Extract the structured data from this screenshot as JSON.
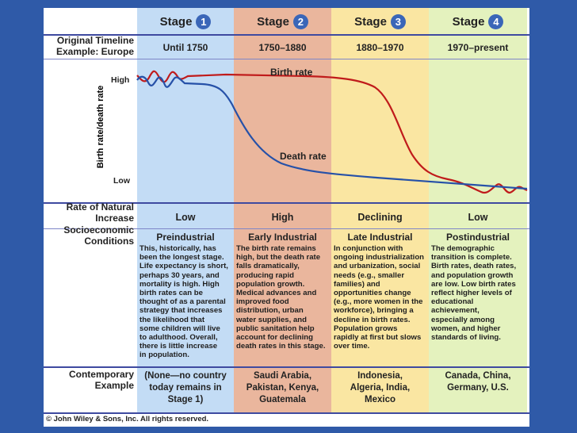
{
  "stages": [
    {
      "label": "Stage",
      "number": "1",
      "period": "Until 1750",
      "rate": "Low",
      "soc_title": "Preindustrial",
      "soc_lines": [
        "This, historically, has",
        "been the longest stage.",
        "Life expectancy is short,",
        "perhaps 30 years, and",
        "mortality is high. High",
        "birth rates can be",
        "thought of as a parental",
        "strategy that increases",
        "the likelihood that",
        "some children will live",
        "to adulthood. Overall,",
        "there is little increase",
        "in population."
      ],
      "contemporary": [
        "(None—no country",
        "today remains in",
        "Stage 1)"
      ]
    },
    {
      "label": "Stage",
      "number": "2",
      "period": "1750–1880",
      "rate": "High",
      "soc_title": "Early Industrial",
      "soc_lines": [
        "The birth rate remains",
        "high, but the death rate",
        "falls dramatically,",
        "producing rapid",
        "population growth.",
        "Medical advances and",
        "improved food",
        "distribution, urban",
        "water supplies, and",
        "public sanitation help",
        "account for declining",
        "death rates in this stage."
      ],
      "contemporary": [
        "Saudi Arabia,",
        "Pakistan, Kenya,",
        "Guatemala"
      ]
    },
    {
      "label": "Stage",
      "number": "3",
      "period": "1880–1970",
      "rate": "Declining",
      "soc_title": "Late Industrial",
      "soc_lines": [
        "In conjunction with",
        "ongoing industrialization",
        "and urbanization, social",
        "needs (e.g., smaller",
        "families) and",
        "opportunities change",
        "(e.g., more women in the",
        "workforce), bringing a",
        "decline in birth rates.",
        "Population grows",
        "rapidly at first but slows",
        "over time."
      ],
      "contemporary": [
        "Indonesia,",
        "Algeria, India,",
        "Mexico"
      ]
    },
    {
      "label": "Stage",
      "number": "4",
      "period": "1970–present",
      "rate": "Low",
      "soc_title": "Postindustrial",
      "soc_lines": [
        "The demographic",
        "transition is complete.",
        "Birth rates, death rates,",
        "and population growth",
        "are low. Low birth rates",
        "reflect higher levels of",
        "educational",
        "achievement,",
        "especially among",
        "women, and higher",
        "standards of living."
      ],
      "contemporary": [
        "Canada, China,",
        "Germany, U.S."
      ]
    }
  ],
  "row_labels": {
    "timeline": [
      "Original Timeline",
      "Example: Europe"
    ],
    "rate": [
      "Rate of Natural",
      "Increase"
    ],
    "socio": [
      "Socioeconomic",
      "Conditions"
    ],
    "contemporary": [
      "Contemporary",
      "Example"
    ]
  },
  "graph": {
    "y_axis_label": "Birth rate/death rate",
    "high_label": "High",
    "low_label": "Low",
    "birth_label": "Birth rate",
    "death_label": "Death rate"
  },
  "copyright": "© John Wiley & Sons, Inc. All rights reserved.",
  "colors": {
    "stage1": "#c3dcf5",
    "stage2": "#eab69d",
    "stage3": "#fae6a2",
    "stage4": "#e4f2be",
    "birth": "#c01b1b",
    "death": "#2651a8",
    "background": "#2f5aa8"
  }
}
